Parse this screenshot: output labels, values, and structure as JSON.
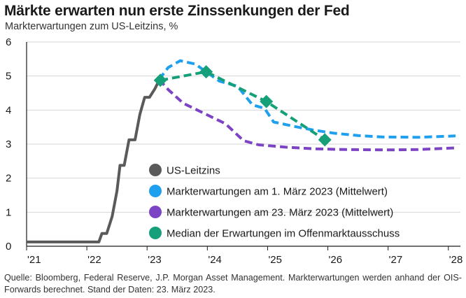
{
  "header": {
    "title": "Märkte erwarten nun erste Zinssenkungen der Fed",
    "subtitle": "Markterwartungen zum US-Leitzins, %"
  },
  "source": "Quelle: Bloomberg, Federal Reserve, J.P. Morgan Asset Management. Markterwartungen werden anhand der OIS-Forwards berechnet. Stand der Daten: 23. März 2023.",
  "chart_data": {
    "type": "line",
    "xlabel": "",
    "ylabel": "",
    "xlim": [
      2021.0,
      2028.2
    ],
    "ylim": [
      0,
      6
    ],
    "grid": "horizontal",
    "legend_position": "bottom-right",
    "x_ticks": [
      {
        "value": 2021,
        "label": "'21"
      },
      {
        "value": 2022,
        "label": "'22"
      },
      {
        "value": 2023,
        "label": "'23"
      },
      {
        "value": 2024,
        "label": "'24"
      },
      {
        "value": 2025,
        "label": "'25"
      },
      {
        "value": 2026,
        "label": "'26"
      },
      {
        "value": 2027,
        "label": "'27"
      },
      {
        "value": 2028,
        "label": "'28"
      }
    ],
    "y_ticks": [
      0,
      1,
      2,
      3,
      4,
      5,
      6
    ],
    "series": [
      {
        "name": "US-Leitzins",
        "color": "#5a5a5a",
        "style": "solid",
        "marker": "none",
        "points": [
          [
            2021.0,
            0.125
          ],
          [
            2022.2,
            0.125
          ],
          [
            2022.25,
            0.375
          ],
          [
            2022.33,
            0.375
          ],
          [
            2022.42,
            0.875
          ],
          [
            2022.5,
            1.625
          ],
          [
            2022.55,
            2.375
          ],
          [
            2022.62,
            2.375
          ],
          [
            2022.7,
            3.125
          ],
          [
            2022.8,
            3.125
          ],
          [
            2022.88,
            3.875
          ],
          [
            2022.96,
            4.375
          ],
          [
            2023.04,
            4.375
          ],
          [
            2023.13,
            4.625
          ],
          [
            2023.2,
            4.875
          ]
        ]
      },
      {
        "name": "Markterwartungen am 1. März 2023 (Mittelwert)",
        "color": "#1fa0ee",
        "style": "dashed",
        "marker": "none",
        "points": [
          [
            2023.2,
            4.9
          ],
          [
            2023.35,
            5.25
          ],
          [
            2023.55,
            5.45
          ],
          [
            2023.8,
            5.35
          ],
          [
            2024.0,
            5.1
          ],
          [
            2024.2,
            4.85
          ],
          [
            2024.5,
            4.7
          ],
          [
            2024.75,
            4.15
          ],
          [
            2024.95,
            4.05
          ],
          [
            2025.1,
            3.65
          ],
          [
            2025.5,
            3.5
          ],
          [
            2025.8,
            3.4
          ],
          [
            2026.1,
            3.32
          ],
          [
            2026.5,
            3.25
          ],
          [
            2026.9,
            3.21
          ],
          [
            2027.5,
            3.2
          ],
          [
            2028.12,
            3.24
          ]
        ]
      },
      {
        "name": "Markterwartungen am 23. März 2023 (Mittelwert)",
        "color": "#7c44c4",
        "style": "dashed",
        "marker": "none",
        "points": [
          [
            2023.2,
            4.9
          ],
          [
            2023.35,
            4.6
          ],
          [
            2023.6,
            4.2
          ],
          [
            2023.95,
            3.9
          ],
          [
            2024.3,
            3.6
          ],
          [
            2024.6,
            3.1
          ],
          [
            2024.85,
            2.98
          ],
          [
            2025.3,
            2.91
          ],
          [
            2025.8,
            2.86
          ],
          [
            2026.3,
            2.84
          ],
          [
            2027.0,
            2.83
          ],
          [
            2027.5,
            2.84
          ],
          [
            2028.12,
            2.89
          ]
        ]
      },
      {
        "name": "Median der Erwartungen im Offenmarktausschuss",
        "color": "#15a07a",
        "style": "dashed",
        "marker": "diamond",
        "points": [
          [
            2023.22,
            4.875
          ],
          [
            2023.98,
            5.125
          ],
          [
            2024.98,
            4.25
          ],
          [
            2025.95,
            3.125
          ]
        ]
      }
    ]
  }
}
